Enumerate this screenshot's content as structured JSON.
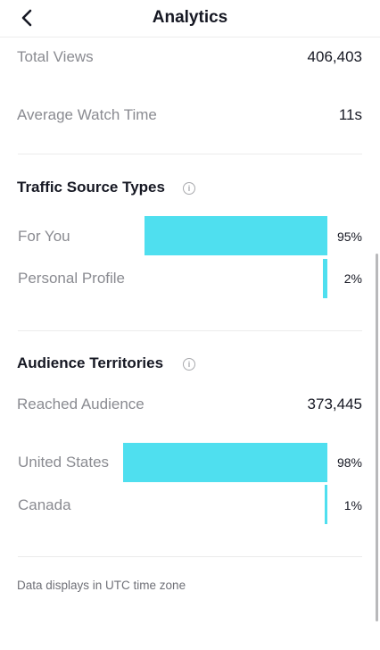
{
  "header": {
    "title": "Analytics"
  },
  "stats": {
    "total_views_label": "Total Views",
    "total_views_value": "406,403",
    "avg_watch_label": "Average Watch Time",
    "avg_watch_value": "11s"
  },
  "traffic": {
    "title": "Traffic Source Types",
    "items": [
      {
        "label": "For You",
        "value": "95%",
        "fraction": 0.95
      },
      {
        "label": "Personal Profile",
        "value": "2%",
        "fraction": 0.02
      }
    ]
  },
  "audience": {
    "title": "Audience Territories",
    "reached_label": "Reached Audience",
    "reached_value": "373,445",
    "items": [
      {
        "label": "United States",
        "value": "98%",
        "fraction": 0.98
      },
      {
        "label": "Canada",
        "value": "1%",
        "fraction": 0.01
      }
    ]
  },
  "footnote": "Data displays in UTC time zone",
  "colors": {
    "bar": "#4fdfef",
    "label_gray": "#8a8b91",
    "text_dark": "#161823"
  },
  "icons": {
    "back": "chevron-left-icon",
    "info": "info-circle-icon"
  }
}
